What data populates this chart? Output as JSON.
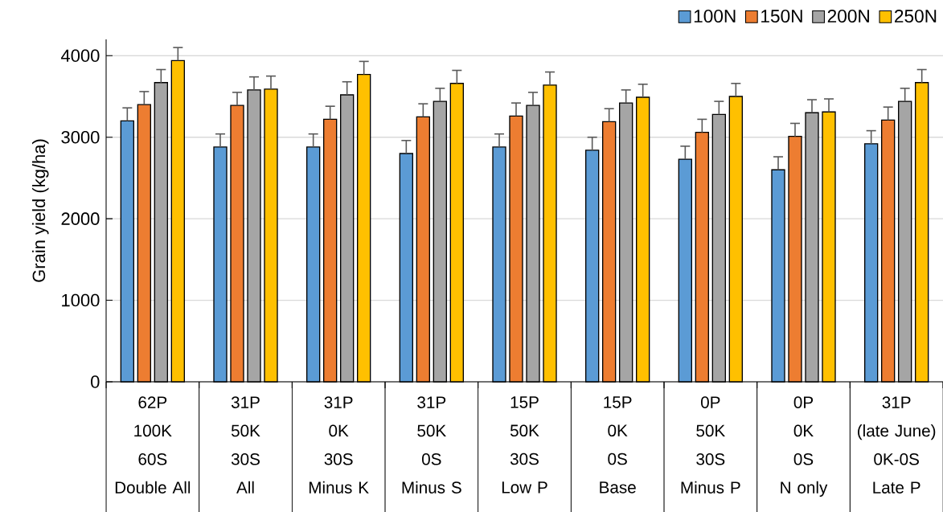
{
  "chart_data": {
    "type": "bar",
    "ylabel": "Grain yield (kg/ha)",
    "categories": [
      "62P\n100K\n60S\nDouble All",
      "31P\n50K\n30S\nAll",
      "31P\n0K\n30S\nMinus K",
      "31P\n50K\n0S\nMinus S",
      "15P\n50K\n30S\nLow P",
      "15P\n0K\n0S\nBase",
      "0P\n50K\n30S\nMinus P",
      "0P\n0K\n0S\nN only",
      "31P\n(late June)\n0K-0S\nLate P"
    ],
    "series": [
      {
        "name": "100N",
        "color": "#5b9bd5",
        "values": [
          3200,
          2880,
          2880,
          2800,
          2880,
          2840,
          2730,
          2600,
          2920
        ],
        "errors": [
          [
            3200,
            3360
          ],
          [
            2880,
            3040
          ],
          [
            2880,
            3040
          ],
          [
            2800,
            2960
          ],
          [
            2880,
            3040
          ],
          [
            2840,
            3000
          ],
          [
            2730,
            2890
          ],
          [
            2600,
            2760
          ],
          [
            2920,
            3080
          ]
        ]
      },
      {
        "name": "150N",
        "color": "#ed7d31",
        "values": [
          3400,
          3390,
          3220,
          3250,
          3260,
          3190,
          3060,
          3010,
          3210
        ],
        "errors": [
          [
            3400,
            3560
          ],
          [
            3390,
            3550
          ],
          [
            3220,
            3380
          ],
          [
            3250,
            3410
          ],
          [
            3260,
            3420
          ],
          [
            3190,
            3350
          ],
          [
            3060,
            3220
          ],
          [
            3010,
            3170
          ],
          [
            3210,
            3370
          ]
        ]
      },
      {
        "name": "200N",
        "color": "#a5a5a5",
        "values": [
          3670,
          3580,
          3520,
          3440,
          3390,
          3420,
          3280,
          3300,
          3440
        ],
        "errors": [
          [
            3670,
            3830
          ],
          [
            3580,
            3740
          ],
          [
            3520,
            3680
          ],
          [
            3440,
            3600
          ],
          [
            3390,
            3550
          ],
          [
            3420,
            3580
          ],
          [
            3280,
            3440
          ],
          [
            3300,
            3460
          ],
          [
            3440,
            3600
          ]
        ]
      },
      {
        "name": "250N",
        "color": "#ffc000",
        "values": [
          3940,
          3590,
          3770,
          3660,
          3640,
          3490,
          3500,
          3310,
          3670
        ],
        "errors": [
          [
            3940,
            4100
          ],
          [
            3590,
            3750
          ],
          [
            3770,
            3930
          ],
          [
            3660,
            3820
          ],
          [
            3640,
            3800
          ],
          [
            3490,
            3650
          ],
          [
            3500,
            3660
          ],
          [
            3310,
            3470
          ],
          [
            3670,
            3830
          ]
        ]
      }
    ],
    "ylim": [
      0,
      4200
    ],
    "yticks": [
      0,
      1000,
      2000,
      3000,
      4000
    ],
    "grid": "y",
    "legend": "top right"
  }
}
